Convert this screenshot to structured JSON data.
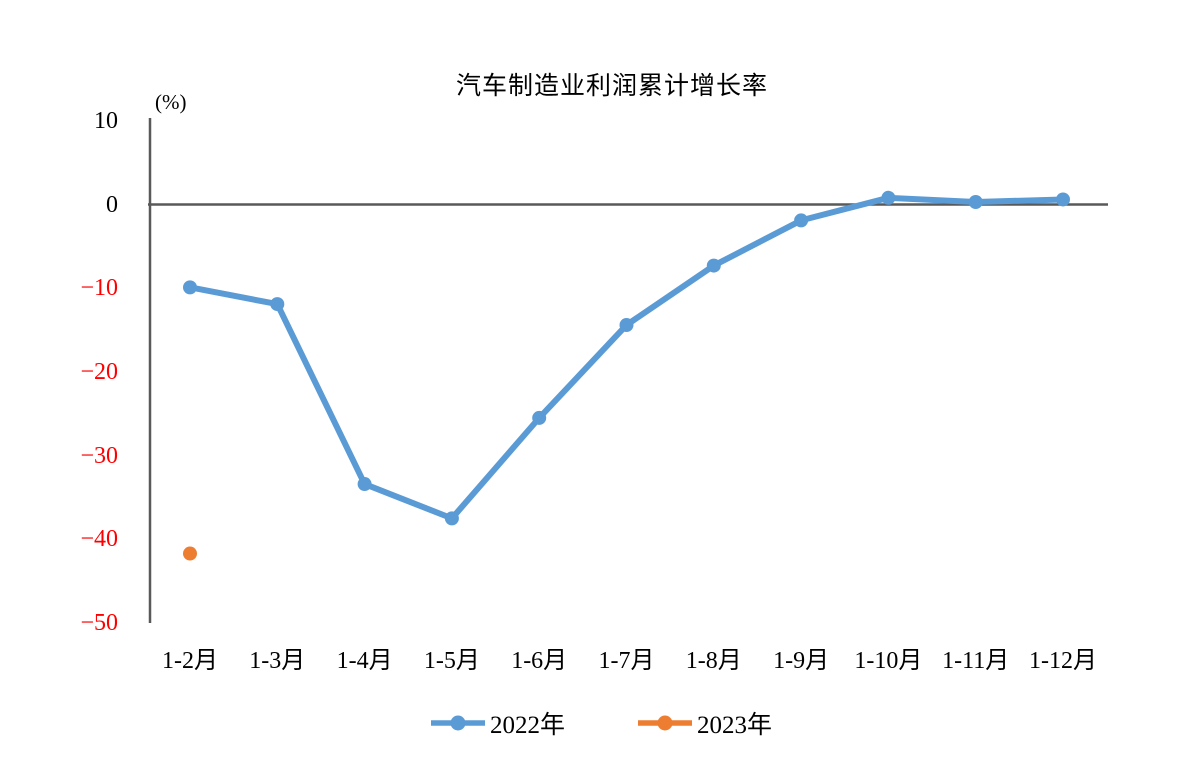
{
  "chart_data": {
    "type": "line",
    "title": "汽车制造业利润累计增长率",
    "unit_label": "(%)",
    "categories": [
      "1-2月",
      "1-3月",
      "1-4月",
      "1-5月",
      "1-6月",
      "1-7月",
      "1-8月",
      "1-9月",
      "1-10月",
      "1-11月",
      "1-12月"
    ],
    "series": [
      {
        "name": "2022年",
        "color": "#5B9BD5",
        "values": [
          -9.9,
          -11.9,
          -33.4,
          -37.5,
          -25.5,
          -14.4,
          -7.3,
          -1.9,
          0.8,
          0.3,
          0.6
        ]
      },
      {
        "name": "2023年",
        "color": "#ED7D31",
        "values": [
          -41.7,
          null,
          null,
          null,
          null,
          null,
          null,
          null,
          null,
          null,
          null
        ]
      }
    ],
    "y_axis": {
      "min": -50,
      "max": 10,
      "ticks": [
        10,
        0,
        -10,
        -20,
        -30,
        -40,
        -50
      ],
      "tick_color_positive": "#000000",
      "tick_color_negative": "#FF0000"
    },
    "axis_color": "#595959",
    "grid": false,
    "legend_position": "bottom"
  }
}
